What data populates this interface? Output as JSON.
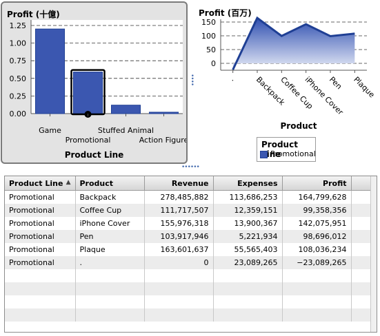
{
  "left_chart": {
    "title": "Profit (十億)",
    "xlabel": "Product Line"
  },
  "right_chart": {
    "title": "Profit (百万)",
    "xlabel": "Product",
    "legend_title": "Product Line",
    "legend_item": "Promotional"
  },
  "chart_data": [
    {
      "type": "bar",
      "title": "Profit (十億)",
      "xlabel": "Product Line",
      "ylabel": "",
      "categories": [
        "Game",
        "Promotional",
        "Stuffed Animal",
        "Action Figure"
      ],
      "values": [
        1.2,
        0.59,
        0.12,
        0.02
      ],
      "ylim": [
        0,
        1.25
      ],
      "yticks": [
        "0.00",
        "0.25",
        "0.50",
        "0.75",
        "1.00",
        "1.25"
      ],
      "grid": true,
      "selected": "Promotional",
      "bar_color": "#3b57b0"
    },
    {
      "type": "area",
      "title": "Profit (百万)",
      "xlabel": "Product",
      "ylabel": "",
      "categories": [
        ".",
        "Backpack",
        "Coffee Cup",
        "iPhone Cover",
        "Pen",
        "Plaque"
      ],
      "series": [
        {
          "name": "Promotional",
          "values": [
            -23.1,
            164.8,
            99.4,
            142.1,
            98.7,
            108.0
          ]
        }
      ],
      "ylim": [
        -25,
        160
      ],
      "yticks": [
        "0",
        "50",
        "100",
        "150"
      ],
      "grid": true,
      "legend": "bottom-center",
      "line_color": "#1f3f94"
    }
  ],
  "table": {
    "columns": [
      "Product Line",
      "Product",
      "Revenue",
      "Expenses",
      "Profit"
    ],
    "sort_indicator": "▲",
    "rows": [
      [
        "Promotional",
        "Backpack",
        "278,485,882",
        "113,686,253",
        "164,799,628"
      ],
      [
        "Promotional",
        "Coffee Cup",
        "111,717,507",
        "12,359,151",
        "99,358,356"
      ],
      [
        "Promotional",
        "iPhone Cover",
        "155,976,318",
        "13,900,367",
        "142,075,951"
      ],
      [
        "Promotional",
        "Pen",
        "103,917,946",
        "5,221,934",
        "98,696,012"
      ],
      [
        "Promotional",
        "Plaque",
        "163,601,637",
        "55,565,403",
        "108,036,234"
      ],
      [
        "Promotional",
        ".",
        "0",
        "23,089,265",
        "−23,089,265"
      ]
    ],
    "empty_rows": 4
  }
}
